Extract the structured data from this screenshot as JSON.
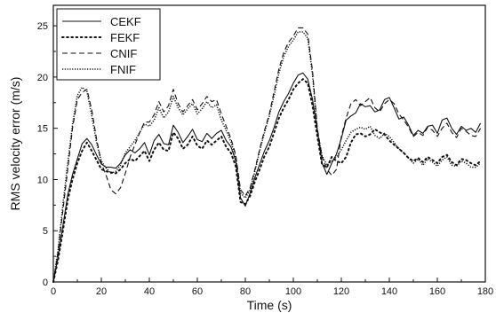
{
  "chart_data": {
    "type": "line",
    "xlabel": "Time (s)",
    "ylabel": "RMS velocity error (m/s)",
    "xlim": [
      0,
      180
    ],
    "ylim": [
      0,
      27
    ],
    "xticks": [
      "0",
      "20",
      "40",
      "60",
      "80",
      "100",
      "120",
      "140",
      "160",
      "180"
    ],
    "yticks": [
      "0",
      "5",
      "10",
      "15",
      "20",
      "25"
    ],
    "legend_position": "top-left",
    "grid": false,
    "x": [
      0,
      2,
      4,
      6,
      8,
      10,
      12,
      14,
      16,
      18,
      20,
      22,
      24,
      26,
      28,
      30,
      32,
      34,
      36,
      38,
      40,
      42,
      44,
      46,
      48,
      50,
      52,
      54,
      56,
      58,
      60,
      62,
      64,
      66,
      68,
      70,
      72,
      74,
      76,
      78,
      80,
      82,
      84,
      86,
      88,
      90,
      92,
      94,
      96,
      98,
      100,
      102,
      104,
      106,
      108,
      110,
      112,
      114,
      116,
      118,
      120,
      122,
      124,
      126,
      128,
      130,
      132,
      134,
      136,
      138,
      140,
      142,
      144,
      146,
      148,
      150,
      152,
      154,
      156,
      158,
      160,
      162,
      164,
      166,
      168,
      170,
      172,
      174,
      176,
      178
    ],
    "series": [
      {
        "name": "CEKF",
        "dash": "solid",
        "values": [
          0,
          2.5,
          5.5,
          8.5,
          10.5,
          12,
          13.5,
          14,
          13.4,
          12.4,
          11.5,
          11.2,
          11.2,
          11.1,
          11.6,
          12.4,
          12.9,
          12.6,
          13,
          13.6,
          12.4,
          13.8,
          14.4,
          13.5,
          13.4,
          15.3,
          14.6,
          13.6,
          14.2,
          14.9,
          13.9,
          13.7,
          14.5,
          14,
          14.5,
          14.8,
          13.8,
          13.2,
          11.8,
          8.2,
          7.4,
          8.7,
          10.2,
          11.5,
          12.8,
          13.8,
          15.1,
          16.6,
          17.6,
          18.4,
          19.4,
          20.2,
          20.4,
          19.8,
          17.8,
          14.8,
          11.6,
          10.5,
          11.6,
          12.5,
          14,
          15.8,
          16.2,
          16.5,
          17.4,
          17.1,
          17.2,
          16.6,
          16.8,
          17.8,
          18,
          17,
          15.9,
          16.1,
          15.3,
          14.3,
          14.8,
          14.5,
          15.2,
          15.3,
          14.5,
          15.8,
          16,
          15,
          14.4,
          15.2,
          14.8,
          15,
          14.6,
          15.5
        ]
      },
      {
        "name": "FEKF",
        "dash": "dotted",
        "values": [
          0,
          2.2,
          5,
          8,
          10,
          11.6,
          12.8,
          13.6,
          12.8,
          11.9,
          11,
          10.8,
          10.7,
          10.6,
          11,
          11.6,
          12,
          11.8,
          12.3,
          12.8,
          11.8,
          12.9,
          13.6,
          12.9,
          12.8,
          14.6,
          14,
          13,
          13.4,
          14.2,
          13.3,
          13,
          13.8,
          13.4,
          13.8,
          14.2,
          13.2,
          12.6,
          11.3,
          7.8,
          7.6,
          8.4,
          9.8,
          11,
          12.3,
          13.2,
          14.6,
          16,
          17,
          17.8,
          18.8,
          19.4,
          19.8,
          19.4,
          17.2,
          14.2,
          11.4,
          11.2,
          12.2,
          11.8,
          11.6,
          12.2,
          13.6,
          14.4,
          14.5,
          14.2,
          14.4,
          14.9,
          14.6,
          14.4,
          13.8,
          13.4,
          13,
          12.6,
          12.1,
          11.8,
          12.1,
          11.7,
          12.2,
          11.9,
          11.6,
          12.2,
          12.4,
          11.7,
          11.4,
          12,
          11.9,
          11.6,
          11.4,
          11.8
        ]
      },
      {
        "name": "CNIF",
        "dash": "dashed",
        "values": [
          0,
          3,
          7,
          11,
          15,
          17.8,
          18.5,
          18.8,
          16.8,
          14,
          11.6,
          10.4,
          9,
          8.6,
          9.2,
          10.6,
          12.2,
          13.4,
          14.6,
          15.6,
          15.6,
          16.3,
          17.6,
          16.6,
          17.2,
          18.8,
          17.4,
          16.6,
          17.2,
          17.8,
          16.8,
          17.4,
          18.1,
          17.6,
          17.8,
          16.4,
          15.2,
          14,
          12.4,
          9,
          8.4,
          9.2,
          11,
          13,
          14.8,
          16.4,
          18.6,
          20.8,
          22.4,
          23.4,
          24,
          24.8,
          24.8,
          24.2,
          20.6,
          15,
          12.2,
          11,
          10.4,
          11,
          14.2,
          16,
          17.4,
          17.8,
          17.2,
          17.6,
          18,
          17,
          16.6,
          17.4,
          17.8,
          17.4,
          16.4,
          15.8,
          15.1,
          14.2,
          14.6,
          14.3,
          15.1,
          14.8,
          14.2,
          15,
          15.5,
          14.6,
          14.1,
          15,
          14.7,
          14.3,
          14.2,
          15
        ]
      },
      {
        "name": "FNIF",
        "dash": "densedot",
        "values": [
          0,
          3.2,
          7.6,
          11.6,
          15.4,
          18.2,
          19,
          18.6,
          16.2,
          13.6,
          11.8,
          11.1,
          10.6,
          10.8,
          11.4,
          12.6,
          13.2,
          13.8,
          14.6,
          15.4,
          15.2,
          15.8,
          17,
          16,
          16.6,
          18.1,
          17,
          16.3,
          16.9,
          17.4,
          16.4,
          16.9,
          17.6,
          17,
          17.3,
          15.8,
          14.8,
          13.7,
          12.1,
          8.7,
          8.2,
          9,
          10.8,
          12.8,
          14.6,
          16.2,
          18.2,
          20.4,
          22,
          23,
          23.6,
          24.4,
          24.4,
          23.8,
          20.2,
          14.7,
          12.3,
          11.4,
          11.8,
          12.2,
          12.9,
          13.8,
          14.6,
          14.9,
          15.1,
          14.9,
          15.2,
          14.3,
          14,
          14.5,
          14.2,
          13.6,
          13,
          12.6,
          12.1,
          11.6,
          12,
          11.4,
          12,
          11.7,
          11.3,
          11.9,
          12.2,
          11.4,
          11.3,
          11.8,
          11.6,
          11.2,
          11.2,
          11.6
        ]
      }
    ]
  }
}
